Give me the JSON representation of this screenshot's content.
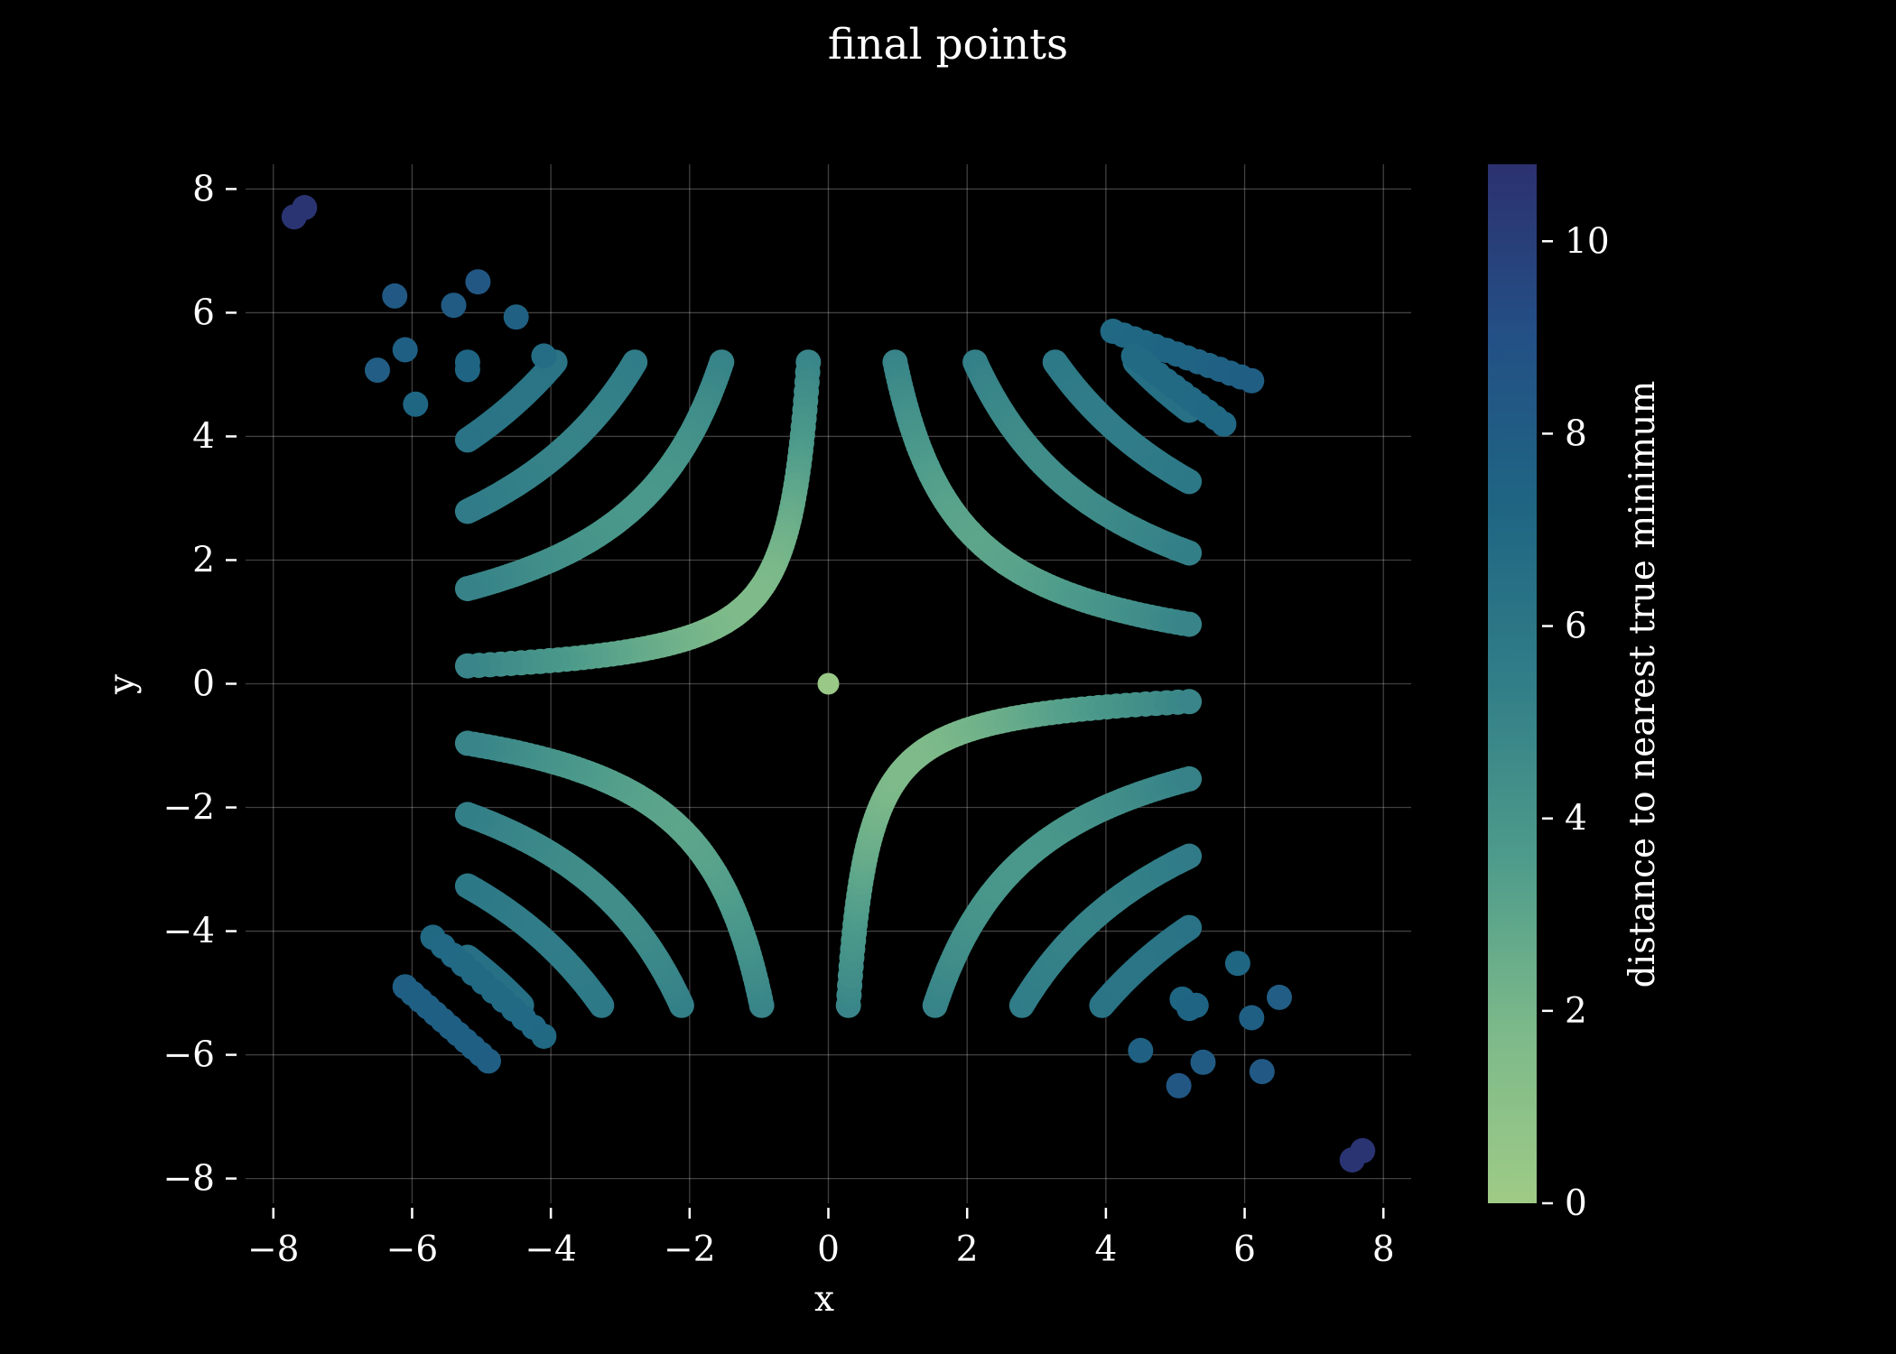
{
  "chart_data": {
    "type": "scatter",
    "title": "final points",
    "xlabel": "x",
    "ylabel": "y",
    "xlim": [
      -8.4,
      8.4
    ],
    "ylim": [
      -8.4,
      8.4
    ],
    "x_ticks": [
      -8,
      -6,
      -4,
      -2,
      0,
      2,
      4,
      6,
      8
    ],
    "y_ticks": [
      -8,
      -6,
      -4,
      -2,
      0,
      2,
      4,
      6,
      8
    ],
    "x_tick_labels": [
      "−8",
      "−6",
      "−4",
      "−2",
      "0",
      "2",
      "4",
      "6",
      "8"
    ],
    "y_tick_labels": [
      "−8",
      "−6",
      "−4",
      "−2",
      "0",
      "2",
      "4",
      "6",
      "8"
    ],
    "grid": true,
    "colormap": "crest",
    "colormap_stops": [
      "#9fcb86",
      "#7cb98a",
      "#4d9b8b",
      "#327e88",
      "#1f6683",
      "#235085",
      "#2c3170"
    ],
    "colorbar": {
      "label": "distance to nearest true minimum",
      "range": [
        0,
        10.8
      ],
      "ticks": [
        0,
        2,
        4,
        6,
        8,
        10
      ],
      "tick_labels": [
        "0",
        "2",
        "4",
        "6",
        "8",
        "10"
      ],
      "position": "right"
    },
    "curve_families": [
      {
        "quadrant": "upper-left",
        "k": [
          1.5,
          8,
          14.5,
          20.5
        ]
      },
      {
        "quadrant": "upper-right",
        "k": [
          5,
          11,
          17,
          23
        ]
      },
      {
        "quadrant": "lower-left",
        "k": [
          5,
          11,
          17,
          23
        ]
      },
      {
        "quadrant": "lower-right",
        "k": [
          1.5,
          8,
          14.5,
          20.5
        ]
      }
    ],
    "clusters": [
      {
        "name": "ul-dense-row",
        "from": [
          -5.2,
          5.2
        ],
        "to": [
          -4.1,
          5.3
        ],
        "count": 2
      },
      {
        "name": "lr-diagonal-row",
        "from": [
          5.1,
          -5.1
        ],
        "to": [
          5.3,
          -5.2
        ],
        "count": 2
      },
      {
        "name": "ur-diagonal-row",
        "from": [
          4.1,
          5.7
        ],
        "to": [
          6.1,
          4.9
        ],
        "count": 14
      },
      {
        "name": "ur-diagonal-row-2",
        "from": [
          4.4,
          5.3
        ],
        "to": [
          5.7,
          4.2
        ],
        "count": 12
      },
      {
        "name": "ll-diagonal-row",
        "from": [
          -5.7,
          -4.1
        ],
        "to": [
          -4.1,
          -5.7
        ],
        "count": 12
      },
      {
        "name": "ll-diagonal-row-2",
        "from": [
          -6.1,
          -4.9
        ],
        "to": [
          -4.9,
          -6.1
        ],
        "count": 12
      }
    ],
    "scattered_points": [
      {
        "x": -6.25,
        "y": 6.27,
        "d": 8.3
      },
      {
        "x": -5.05,
        "y": 6.5,
        "d": 8.4
      },
      {
        "x": -5.4,
        "y": 6.12,
        "d": 8.1
      },
      {
        "x": -4.5,
        "y": 5.93,
        "d": 7.6
      },
      {
        "x": -6.1,
        "y": 5.4,
        "d": 7.8
      },
      {
        "x": -6.5,
        "y": 5.07,
        "d": 7.9
      },
      {
        "x": -5.95,
        "y": 4.52,
        "d": 7.2
      },
      {
        "x": -5.2,
        "y": 5.08,
        "d": 7.3
      },
      {
        "x": 5.9,
        "y": -4.52,
        "d": 7.2
      },
      {
        "x": 6.5,
        "y": -5.07,
        "d": 7.9
      },
      {
        "x": 6.1,
        "y": -5.4,
        "d": 7.8
      },
      {
        "x": 4.5,
        "y": -5.93,
        "d": 7.6
      },
      {
        "x": 5.4,
        "y": -6.12,
        "d": 8.1
      },
      {
        "x": 6.25,
        "y": -6.27,
        "d": 8.3
      },
      {
        "x": 5.05,
        "y": -6.5,
        "d": 8.4
      },
      {
        "x": 5.2,
        "y": -5.25,
        "d": 7.4
      },
      {
        "x": -7.7,
        "y": 7.55,
        "d": 10.6
      },
      {
        "x": -7.55,
        "y": 7.7,
        "d": 10.6
      },
      {
        "x": 7.55,
        "y": -7.7,
        "d": 10.6
      },
      {
        "x": 7.7,
        "y": -7.55,
        "d": 10.6
      },
      {
        "x": 0,
        "y": 0,
        "d": 0.3
      }
    ]
  }
}
